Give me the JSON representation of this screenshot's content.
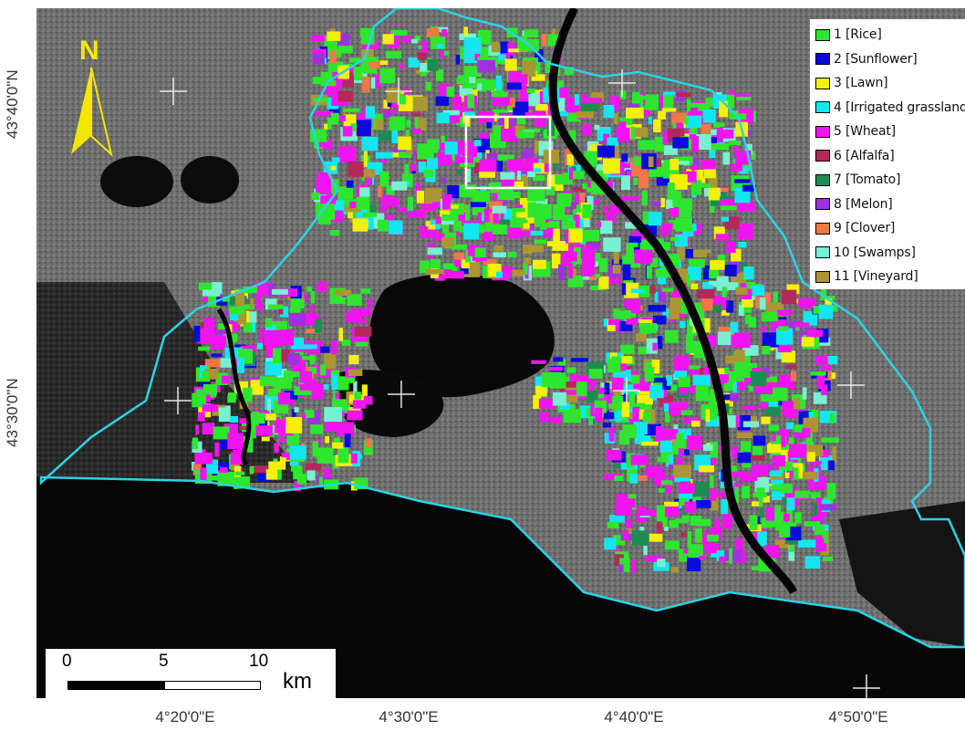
{
  "legend": {
    "items": [
      {
        "label": "1 [Rice]",
        "color": "#2ee62e"
      },
      {
        "label": "2 [Sunflower]",
        "color": "#0a0adc"
      },
      {
        "label": "3 [Lawn]",
        "color": "#f5f00a"
      },
      {
        "label": "4 [Irrigated grassland]",
        "color": "#14e6f0"
      },
      {
        "label": "5 [Wheat]",
        "color": "#f014f0"
      },
      {
        "label": "6 [Alfalfa]",
        "color": "#b4285a"
      },
      {
        "label": "7 [Tomato]",
        "color": "#1e8c50"
      },
      {
        "label": "8 [Melon]",
        "color": "#a032dc"
      },
      {
        "label": "9 [Clover]",
        "color": "#f07846"
      },
      {
        "label": "10 [Swamps]",
        "color": "#78f0d2"
      },
      {
        "label": "11 [Vineyard]",
        "color": "#aa9632"
      }
    ]
  },
  "north_arrow": {
    "label": "N",
    "color": "#f5e600"
  },
  "scale_bar": {
    "ticks": [
      "0",
      "5",
      "10"
    ],
    "unit": "km"
  },
  "axes": {
    "longitude_labels": [
      "4°20'0\"E",
      "4°30'0\"E",
      "4°40'0\"E",
      "4°50'0\"E"
    ],
    "latitude_labels": [
      "43°40'0\"N",
      "43°30'0\"N"
    ]
  },
  "colors": {
    "boundary": "#2ad4e6",
    "inset_box": "#ffffff",
    "sea": "#060606",
    "land": "#6b6b6b"
  }
}
